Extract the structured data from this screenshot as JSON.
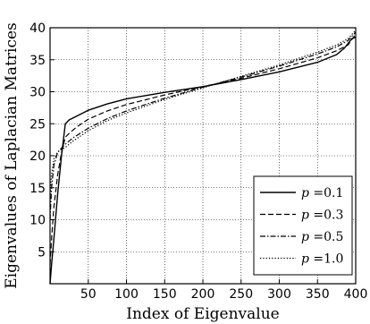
{
  "chart_data": {
    "type": "line",
    "title": "",
    "xlabel": "Index of Eigenvalue",
    "ylabel": "Eigenvalues of Laplacian Matrices",
    "xlim": [
      0,
      400
    ],
    "ylim": [
      0,
      40
    ],
    "xticks": [
      50,
      100,
      150,
      200,
      250,
      300,
      350,
      400
    ],
    "xtick_labels": [
      "50",
      "100",
      "150",
      "200",
      "250",
      "300",
      "350",
      "400"
    ],
    "yticks": [
      5,
      10,
      15,
      20,
      25,
      30,
      35,
      40
    ],
    "ytick_labels": [
      "5",
      "10",
      "15",
      "20",
      "25",
      "30",
      "35",
      "40"
    ],
    "grid": true,
    "legend_position": "lower-right",
    "series": [
      {
        "name": "p=0.1",
        "label_var": "p",
        "label_eq": "=0.1",
        "style": "solid",
        "x": [
          0,
          2,
          5,
          10,
          15,
          20,
          25,
          35,
          50,
          75,
          100,
          150,
          200,
          250,
          300,
          350,
          375,
          385,
          395,
          400
        ],
        "y": [
          0,
          3,
          7,
          14,
          20,
          25,
          25.6,
          26.2,
          27.1,
          28.1,
          28.9,
          29.9,
          30.8,
          31.9,
          33.1,
          34.6,
          35.8,
          36.8,
          38.3,
          38.5
        ]
      },
      {
        "name": "p=0.3",
        "label_var": "p",
        "label_eq": "=0.3",
        "style": "dashed",
        "x": [
          0,
          2,
          5,
          10,
          15,
          20,
          25,
          35,
          50,
          75,
          100,
          150,
          200,
          250,
          300,
          350,
          375,
          390,
          400
        ],
        "y": [
          3,
          7,
          12,
          17,
          20.5,
          22.9,
          23.5,
          24.5,
          25.7,
          27,
          28,
          29.5,
          30.8,
          32.1,
          33.6,
          35.3,
          36.4,
          37.3,
          39
        ]
      },
      {
        "name": "p=0.5",
        "label_var": "p",
        "label_eq": "=0.5",
        "style": "dashdot",
        "x": [
          0,
          2,
          5,
          10,
          15,
          20,
          30,
          50,
          75,
          100,
          150,
          200,
          250,
          300,
          350,
          375,
          390,
          400
        ],
        "y": [
          10,
          15,
          18.5,
          20.5,
          21.2,
          21.8,
          22.8,
          24.3,
          25.8,
          27,
          29,
          30.7,
          32.3,
          34,
          35.9,
          37,
          38,
          39.3
        ]
      },
      {
        "name": "p=1.0",
        "label_var": "p",
        "label_eq": "=1.0",
        "style": "dotted",
        "x": [
          0,
          2,
          5,
          10,
          15,
          20,
          30,
          50,
          75,
          100,
          150,
          200,
          250,
          300,
          350,
          375,
          390,
          400
        ],
        "y": [
          13.5,
          17,
          19.5,
          20.6,
          21,
          21.3,
          22.3,
          23.9,
          25.5,
          26.7,
          28.8,
          30.6,
          32.4,
          34.2,
          36.2,
          37.3,
          38.3,
          39.6
        ]
      }
    ]
  }
}
